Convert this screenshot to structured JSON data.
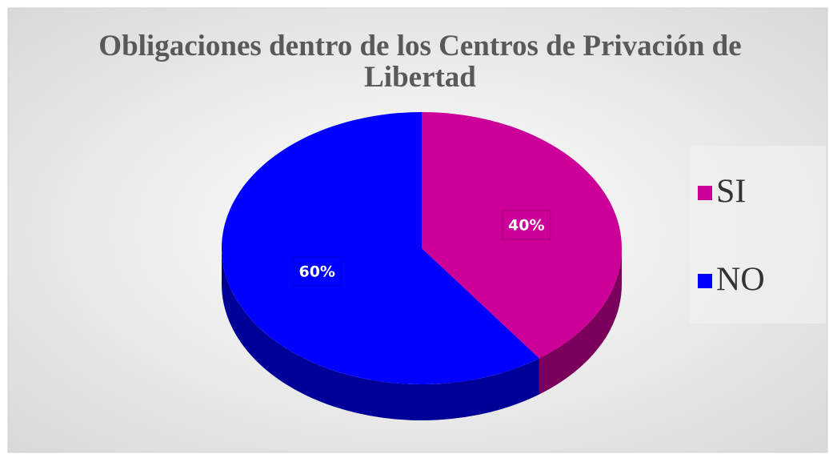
{
  "chart_data": {
    "type": "pie",
    "title": "Obligaciones dentro de los Centros de Privación de Libertad",
    "categories": [
      "SI",
      "NO"
    ],
    "values": [
      40,
      60
    ],
    "value_labels": [
      "40%",
      "60%"
    ],
    "colors": [
      "#cc0099",
      "#0000ff"
    ],
    "legend": "right"
  }
}
